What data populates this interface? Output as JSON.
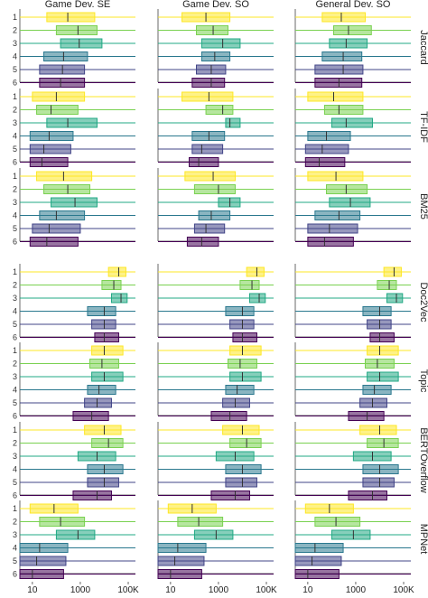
{
  "chart_data": {
    "type": "boxplot",
    "x_scale": "log",
    "x_ticks": [
      10,
      1000,
      100000
    ],
    "x_tick_labels": [
      "10",
      "1000",
      "100K"
    ],
    "x_range": [
      3,
      200000
    ],
    "columns": [
      "Game Dev. SE",
      "Game Dev. SO",
      "General Dev. SO"
    ],
    "rows": [
      "Jaccard",
      "TF-IDF",
      "BM25",
      "Doc2Vec",
      "Topic",
      "BERTOverflow",
      "MPNet"
    ],
    "categories": [
      "1",
      "2",
      "3",
      "4",
      "5",
      "6"
    ],
    "colors": [
      "#fde725",
      "#7ad151",
      "#22a884",
      "#2a788e",
      "#414487",
      "#440154"
    ],
    "panels": [
      [
        {
          "boxes": [
            [
              40,
              4000
            ],
            [
              100,
              5000
            ],
            [
              150,
              8000
            ],
            [
              30,
              2000
            ],
            [
              20,
              1500
            ],
            [
              20,
              1500
            ]
          ],
          "medians": [
            300,
            800,
            900,
            200,
            180,
            150
          ]
        },
        {
          "boxes": [
            [
              30,
              3000
            ],
            [
              120,
              2500
            ],
            [
              200,
              8000
            ],
            [
              200,
              3000
            ],
            [
              120,
              2000
            ],
            [
              80,
              1800
            ]
          ],
          "medians": [
            300,
            600,
            1500,
            700,
            500,
            500
          ]
        },
        {
          "boxes": [
            [
              40,
              2500
            ],
            [
              120,
              4500
            ],
            [
              80,
              3000
            ],
            [
              40,
              1800
            ],
            [
              20,
              2000
            ],
            [
              20,
              1800
            ]
          ],
          "medians": [
            250,
            500,
            400,
            300,
            300,
            200
          ]
        }
      ],
      [
        {
          "boxes": [
            [
              10,
              1500
            ],
            [
              15,
              800
            ],
            [
              40,
              5000
            ],
            [
              8,
              500
            ],
            [
              8,
              400
            ],
            [
              8,
              300
            ]
          ],
          "medians": [
            100,
            60,
            300,
            50,
            30,
            25
          ]
        },
        {
          "boxes": [
            [
              30,
              4000
            ],
            [
              300,
              4000
            ],
            [
              2000,
              8000
            ],
            [
              80,
              1800
            ],
            [
              80,
              1500
            ],
            [
              60,
              1000
            ]
          ],
          "medians": [
            400,
            1500,
            3000,
            400,
            200,
            150
          ]
        },
        {
          "boxes": [
            [
              10,
              2000
            ],
            [
              50,
              2000
            ],
            [
              100,
              5000
            ],
            [
              10,
              600
            ],
            [
              8,
              500
            ],
            [
              8,
              350
            ]
          ],
          "medians": [
            120,
            200,
            400,
            60,
            40,
            30
          ]
        }
      ],
      [
        {
          "boxes": [
            [
              15,
              3000
            ],
            [
              30,
              2500
            ],
            [
              60,
              5000
            ],
            [
              20,
              1500
            ],
            [
              10,
              1000
            ],
            [
              8,
              800
            ]
          ],
          "medians": [
            200,
            300,
            600,
            100,
            50,
            40
          ]
        },
        {
          "boxes": [
            [
              40,
              5000
            ],
            [
              100,
              5000
            ],
            [
              1000,
              8000
            ],
            [
              150,
              3000
            ],
            [
              100,
              1800
            ],
            [
              50,
              1000
            ]
          ],
          "medians": [
            600,
            1000,
            3000,
            500,
            300,
            200
          ]
        },
        {
          "boxes": [
            [
              10,
              2000
            ],
            [
              60,
              3000
            ],
            [
              80,
              4000
            ],
            [
              20,
              1500
            ],
            [
              10,
              1200
            ],
            [
              10,
              800
            ]
          ],
          "medians": [
            150,
            400,
            600,
            200,
            80,
            50
          ]
        }
      ],
      [
        {
          "boxes": [
            [
              15000,
              80000
            ],
            [
              8000,
              50000
            ],
            [
              20000,
              90000
            ],
            [
              2000,
              30000
            ],
            [
              3000,
              30000
            ],
            [
              4000,
              40000
            ]
          ],
          "medians": [
            40000,
            25000,
            50000,
            10000,
            10000,
            10000
          ]
        },
        {
          "boxes": [
            [
              15000,
              80000
            ],
            [
              8000,
              50000
            ],
            [
              20000,
              90000
            ],
            [
              2000,
              30000
            ],
            [
              3000,
              30000
            ],
            [
              4000,
              40000
            ]
          ],
          "medians": [
            40000,
            25000,
            50000,
            10000,
            10000,
            10000
          ]
        },
        {
          "boxes": [
            [
              15000,
              80000
            ],
            [
              8000,
              50000
            ],
            [
              20000,
              90000
            ],
            [
              2000,
              30000
            ],
            [
              3000,
              30000
            ],
            [
              4000,
              40000
            ]
          ],
          "medians": [
            40000,
            25000,
            50000,
            10000,
            10000,
            10000
          ]
        }
      ],
      [
        {
          "boxes": [
            [
              3000,
              60000
            ],
            [
              2500,
              40000
            ],
            [
              3000,
              60000
            ],
            [
              2000,
              30000
            ],
            [
              1500,
              20000
            ],
            [
              500,
              15000
            ]
          ],
          "medians": [
            10000,
            8000,
            10000,
            6000,
            5000,
            3000
          ]
        },
        {
          "boxes": [
            [
              3000,
              60000
            ],
            [
              2500,
              40000
            ],
            [
              3000,
              60000
            ],
            [
              2000,
              30000
            ],
            [
              1500,
              20000
            ],
            [
              500,
              15000
            ]
          ],
          "medians": [
            10000,
            8000,
            10000,
            6000,
            5000,
            3000
          ]
        },
        {
          "boxes": [
            [
              3000,
              60000
            ],
            [
              2500,
              40000
            ],
            [
              3000,
              60000
            ],
            [
              2000,
              30000
            ],
            [
              1500,
              20000
            ],
            [
              500,
              15000
            ]
          ],
          "medians": [
            10000,
            8000,
            10000,
            6000,
            5000,
            3000
          ]
        }
      ],
      [
        {
          "boxes": [
            [
              1500,
              50000
            ],
            [
              3000,
              60000
            ],
            [
              800,
              30000
            ],
            [
              2000,
              60000
            ],
            [
              2000,
              40000
            ],
            [
              500,
              20000
            ]
          ],
          "medians": [
            10000,
            15000,
            5000,
            10000,
            10000,
            5000
          ]
        },
        {
          "boxes": [
            [
              1500,
              50000
            ],
            [
              3000,
              60000
            ],
            [
              800,
              30000
            ],
            [
              2000,
              60000
            ],
            [
              2000,
              40000
            ],
            [
              500,
              20000
            ]
          ],
          "medians": [
            10000,
            15000,
            5000,
            10000,
            10000,
            5000
          ]
        },
        {
          "boxes": [
            [
              1500,
              50000
            ],
            [
              3000,
              60000
            ],
            [
              800,
              30000
            ],
            [
              2000,
              60000
            ],
            [
              2000,
              40000
            ],
            [
              500,
              20000
            ]
          ],
          "medians": [
            10000,
            15000,
            5000,
            10000,
            10000,
            5000
          ]
        }
      ],
      [
        {
          "boxes": [
            [
              8,
              800
            ],
            [
              20,
              1500
            ],
            [
              100,
              4000
            ],
            [
              3,
              300
            ],
            [
              3,
              250
            ],
            [
              3,
              200
            ]
          ],
          "medians": [
            80,
            150,
            800,
            20,
            15,
            10
          ]
        },
        {
          "boxes": [
            [
              8,
              800
            ],
            [
              20,
              1500
            ],
            [
              100,
              4000
            ],
            [
              3,
              300
            ],
            [
              3,
              250
            ],
            [
              3,
              200
            ]
          ],
          "medians": [
            80,
            150,
            800,
            20,
            15,
            10
          ]
        },
        {
          "boxes": [
            [
              8,
              800
            ],
            [
              20,
              1500
            ],
            [
              100,
              4000
            ],
            [
              3,
              300
            ],
            [
              3,
              250
            ],
            [
              3,
              200
            ]
          ],
          "medians": [
            80,
            150,
            800,
            20,
            15,
            10
          ]
        }
      ]
    ]
  }
}
